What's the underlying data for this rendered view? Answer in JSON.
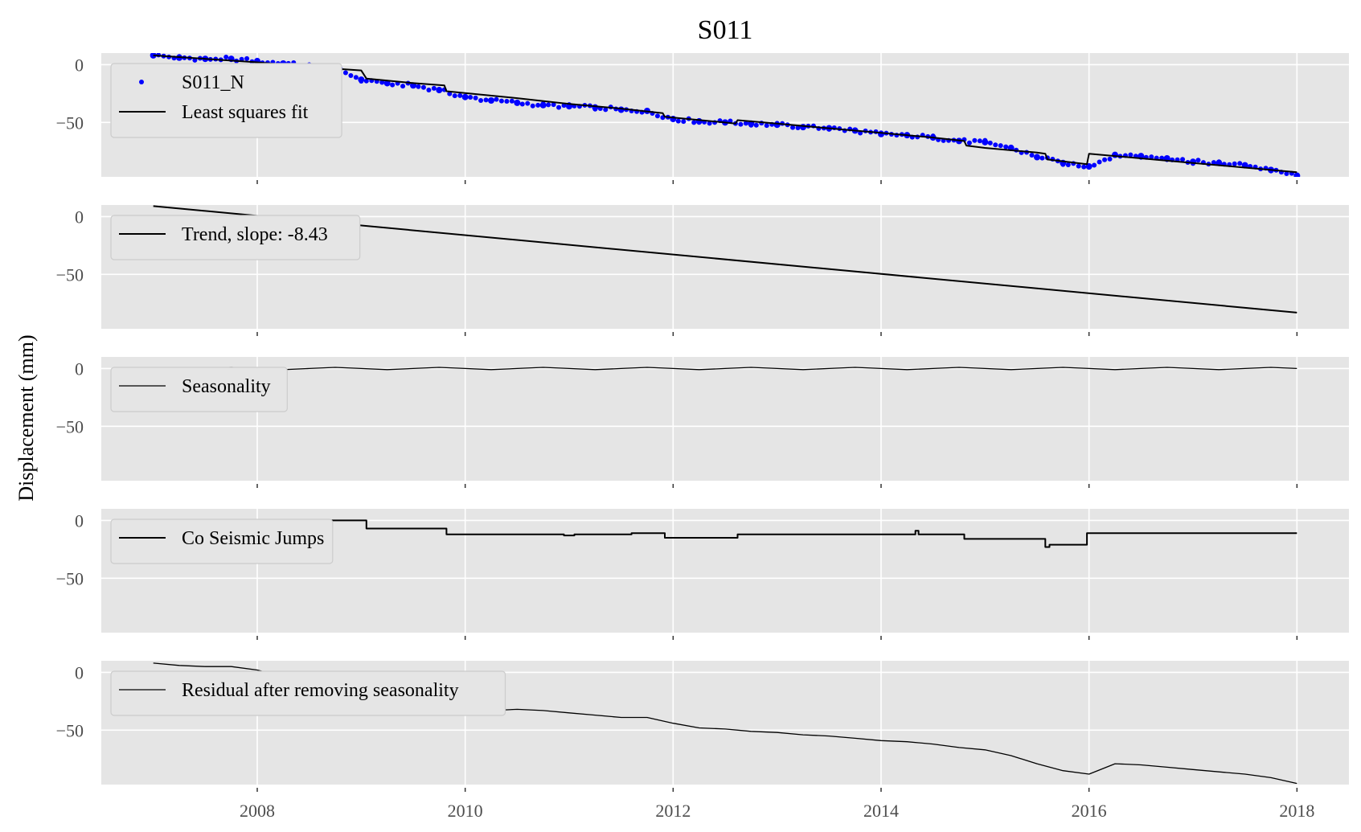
{
  "figure": {
    "title": "S011",
    "ylabel": "Displacement (mm)"
  },
  "colors": {
    "panel_background": "#e5e5e5",
    "grid": "#ffffff",
    "observations": "#0000ff",
    "fit": "#000000",
    "tick_text": "#4d4d4d"
  },
  "chart_data": [
    {
      "type": "scatter",
      "panel": "observations",
      "xlim": [
        2006.5,
        2018.5
      ],
      "ylim": [
        -97,
        10
      ],
      "x_ticks": [
        2008,
        2010,
        2012,
        2014,
        2016,
        2018
      ],
      "y_ticks": [
        0,
        -50
      ],
      "grid": true,
      "legend_position": "upper-left",
      "series": [
        {
          "name": "S011_N",
          "kind": "points",
          "color": "#0000ff",
          "x": [
            2007.0,
            2007.25,
            2007.5,
            2007.75,
            2008.0,
            2008.25,
            2008.5,
            2008.75,
            2009.0,
            2009.25,
            2009.5,
            2009.75,
            2010.0,
            2010.25,
            2010.5,
            2010.75,
            2011.0,
            2011.25,
            2011.5,
            2011.75,
            2012.0,
            2012.25,
            2012.5,
            2012.75,
            2013.0,
            2013.25,
            2013.5,
            2013.75,
            2014.0,
            2014.25,
            2014.5,
            2014.75,
            2015.0,
            2015.25,
            2015.5,
            2015.75,
            2016.0,
            2016.25,
            2016.5,
            2016.75,
            2017.0,
            2017.25,
            2017.5,
            2017.75,
            2018.0
          ],
          "y": [
            8,
            6,
            5,
            5,
            3,
            1,
            -1,
            -3,
            -13,
            -16,
            -18,
            -22,
            -28,
            -31,
            -33,
            -35,
            -36,
            -37,
            -39,
            -40,
            -47,
            -49,
            -50,
            -51,
            -52,
            -54,
            -55,
            -57,
            -60,
            -61,
            -63,
            -66,
            -67,
            -72,
            -80,
            -85,
            -88,
            -78,
            -79,
            -81,
            -84,
            -85,
            -87,
            -91,
            -96
          ]
        },
        {
          "name": "Least squares fit",
          "kind": "line",
          "color": "#000000",
          "x": [
            2007.0,
            2007.5,
            2008.0,
            2008.5,
            2009.0,
            2009.05,
            2009.5,
            2009.8,
            2009.82,
            2010.5,
            2011.0,
            2011.5,
            2011.9,
            2011.92,
            2012.5,
            2012.6,
            2012.62,
            2013.0,
            2013.5,
            2014.0,
            2014.5,
            2014.8,
            2014.82,
            2015.0,
            2015.5,
            2015.58,
            2015.6,
            2015.98,
            2016.0,
            2016.5,
            2017.0,
            2017.5,
            2018.0
          ],
          "y": [
            8,
            5,
            2,
            -2,
            -5,
            -12,
            -16,
            -18,
            -23,
            -29,
            -34,
            -38,
            -42,
            -45,
            -50,
            -51,
            -48,
            -51,
            -55,
            -59,
            -63,
            -66,
            -70,
            -72,
            -76,
            -77,
            -82,
            -86,
            -77,
            -81,
            -85,
            -89,
            -93
          ]
        }
      ]
    },
    {
      "type": "line",
      "panel": "trend",
      "xlim": [
        2006.5,
        2018.5
      ],
      "ylim": [
        -97,
        10
      ],
      "x_ticks": [
        2008,
        2010,
        2012,
        2014,
        2016,
        2018
      ],
      "y_ticks": [
        0,
        -50
      ],
      "grid": true,
      "legend_position": "upper-left",
      "series": [
        {
          "name": "Trend, slope: -8.43",
          "kind": "line",
          "color": "#000000",
          "x": [
            2007.0,
            2018.0
          ],
          "y": [
            9,
            -83
          ]
        }
      ]
    },
    {
      "type": "line",
      "panel": "seasonality",
      "xlim": [
        2006.5,
        2018.5
      ],
      "ylim": [
        -97,
        10
      ],
      "x_ticks": [
        2008,
        2010,
        2012,
        2014,
        2016,
        2018
      ],
      "y_ticks": [
        0,
        -50
      ],
      "grid": true,
      "legend_position": "upper-left",
      "series": [
        {
          "name": "Seasonality",
          "kind": "line",
          "color": "#000000",
          "x": [
            2007.0,
            2007.25,
            2007.5,
            2007.75,
            2008.0,
            2008.25,
            2008.5,
            2008.75,
            2009.0,
            2009.25,
            2009.5,
            2009.75,
            2010.0,
            2010.25,
            2010.5,
            2010.75,
            2011.0,
            2011.25,
            2011.5,
            2011.75,
            2012.0,
            2012.25,
            2012.5,
            2012.75,
            2013.0,
            2013.25,
            2013.5,
            2013.75,
            2014.0,
            2014.25,
            2014.5,
            2014.75,
            2015.0,
            2015.25,
            2015.5,
            2015.75,
            2016.0,
            2016.25,
            2016.5,
            2016.75,
            2017.0,
            2017.25,
            2017.5,
            2017.75,
            2018.0
          ],
          "y": [
            0,
            -1,
            0,
            1,
            0,
            -1,
            0,
            1,
            0,
            -1,
            0,
            1,
            0,
            -1,
            0,
            1,
            0,
            -1,
            0,
            1,
            0,
            -1,
            0,
            1,
            0,
            -1,
            0,
            1,
            0,
            -1,
            0,
            1,
            0,
            -1,
            0,
            1,
            0,
            -1,
            0,
            1,
            0,
            -1,
            0,
            1,
            0
          ]
        }
      ]
    },
    {
      "type": "line",
      "panel": "jumps",
      "xlim": [
        2006.5,
        2018.5
      ],
      "ylim": [
        -97,
        10
      ],
      "x_ticks": [
        2008,
        2010,
        2012,
        2014,
        2016,
        2018
      ],
      "y_ticks": [
        0,
        -50
      ],
      "grid": true,
      "legend_position": "upper-left",
      "series": [
        {
          "name": "Co Seismic Jumps",
          "kind": "line",
          "color": "#000000",
          "x": [
            2007.0,
            2009.05,
            2009.05,
            2009.82,
            2009.82,
            2010.95,
            2010.95,
            2011.05,
            2011.05,
            2011.6,
            2011.6,
            2011.92,
            2011.92,
            2012.62,
            2012.62,
            2014.33,
            2014.33,
            2014.36,
            2014.36,
            2014.8,
            2014.8,
            2015.58,
            2015.58,
            2015.62,
            2015.62,
            2015.98,
            2015.98,
            2018.0
          ],
          "y": [
            0,
            0,
            -7,
            -7,
            -12,
            -12,
            -13,
            -13,
            -12,
            -12,
            -11,
            -11,
            -15,
            -15,
            -12,
            -12,
            -9,
            -9,
            -12,
            -12,
            -16,
            -16,
            -23,
            -23,
            -21,
            -21,
            -11,
            -11
          ]
        }
      ]
    },
    {
      "type": "line",
      "panel": "residual",
      "xlim": [
        2006.5,
        2018.5
      ],
      "ylim": [
        -97,
        10
      ],
      "x_ticks": [
        2008,
        2010,
        2012,
        2014,
        2016,
        2018
      ],
      "y_ticks": [
        0,
        -50
      ],
      "grid": true,
      "legend_position": "upper-left",
      "series": [
        {
          "name": "Residual after removing seasonality",
          "kind": "line",
          "color": "#000000",
          "x": [
            2007.0,
            2007.25,
            2007.5,
            2007.75,
            2008.0,
            2008.25,
            2008.5,
            2008.75,
            2009.0,
            2009.25,
            2009.5,
            2009.75,
            2010.0,
            2010.25,
            2010.5,
            2010.75,
            2011.0,
            2011.25,
            2011.5,
            2011.75,
            2012.0,
            2012.25,
            2012.5,
            2012.75,
            2013.0,
            2013.25,
            2013.5,
            2013.75,
            2014.0,
            2014.25,
            2014.5,
            2014.75,
            2015.0,
            2015.25,
            2015.5,
            2015.75,
            2016.0,
            2016.25,
            2016.5,
            2016.75,
            2017.0,
            2017.25,
            2017.5,
            2017.75,
            2018.0
          ],
          "y": [
            8,
            6,
            5,
            5,
            2,
            -4,
            -8,
            -12,
            -18,
            -22,
            -26,
            -29,
            -31,
            -33,
            -32,
            -33,
            -35,
            -37,
            -39,
            -39,
            -44,
            -48,
            -49,
            -51,
            -52,
            -54,
            -55,
            -57,
            -59,
            -60,
            -62,
            -65,
            -67,
            -72,
            -79,
            -85,
            -88,
            -79,
            -80,
            -82,
            -84,
            -86,
            -88,
            -91,
            -96
          ]
        }
      ]
    }
  ]
}
